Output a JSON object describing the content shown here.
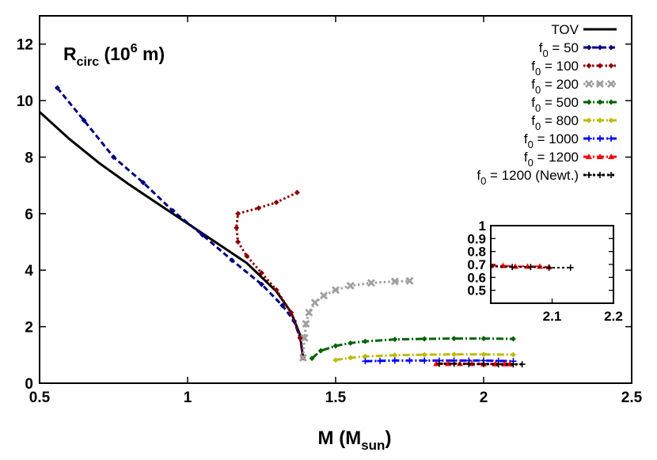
{
  "chart_data": {
    "type": "line",
    "title": "",
    "plot_label": {
      "main": "R",
      "sub": "circ",
      "rest": " (10",
      "sup": "6",
      "tail": " m)"
    },
    "xlabel": {
      "main": "M (M",
      "sub": "sun",
      "tail": ")"
    },
    "ylabel": "",
    "xlim": [
      0.5,
      2.5
    ],
    "ylim": [
      0,
      13
    ],
    "xticks": [
      "0.5",
      "1",
      "1.5",
      "2",
      "2.5"
    ],
    "yticks": [
      "0",
      "2",
      "4",
      "6",
      "8",
      "10",
      "12"
    ],
    "xtick_values": [
      0.5,
      1,
      1.5,
      2,
      2.5
    ],
    "ytick_values": [
      0,
      2,
      4,
      6,
      8,
      10,
      12
    ],
    "grid": false,
    "legend_position": "top-right",
    "series": [
      {
        "name": "TOV",
        "label": {
          "main": "TOV"
        },
        "color": "#000000",
        "dash": "solid",
        "marker": "none",
        "x": [
          0.5,
          0.6,
          0.7,
          0.8,
          0.9,
          1.0,
          1.1,
          1.2,
          1.3,
          1.35,
          1.38,
          1.39
        ],
        "y": [
          9.6,
          8.65,
          7.8,
          7.05,
          6.35,
          5.65,
          4.95,
          4.25,
          3.25,
          2.5,
          1.7,
          0.9
        ]
      },
      {
        "name": "f0 = 50",
        "label": {
          "main": "f",
          "sub": "0",
          "tail": " = 50"
        },
        "color": "#000080",
        "dash": "dash",
        "marker": "diamond",
        "x": [
          0.56,
          0.65,
          0.75,
          0.85,
          0.95,
          1.05,
          1.15,
          1.25,
          1.32,
          1.36,
          1.38,
          1.39
        ],
        "y": [
          10.45,
          9.3,
          8.0,
          7.1,
          6.1,
          5.25,
          4.35,
          3.5,
          2.75,
          2.2,
          1.6,
          0.95
        ]
      },
      {
        "name": "f0 = 100",
        "label": {
          "main": "f",
          "sub": "0",
          "tail": " = 100"
        },
        "color": "#8B0000",
        "dash": "dot",
        "marker": "diamond",
        "x": [
          1.37,
          1.3,
          1.24,
          1.17,
          1.165,
          1.17,
          1.2,
          1.25,
          1.3,
          1.35,
          1.38,
          1.39
        ],
        "y": [
          6.75,
          6.4,
          6.2,
          6.0,
          5.5,
          5.0,
          4.5,
          3.9,
          3.3,
          2.5,
          1.6,
          0.9
        ]
      },
      {
        "name": "f0 = 200",
        "label": {
          "main": "f",
          "sub": "0",
          "tail": " = 200"
        },
        "color": "#A0A0A0",
        "dash": "dot",
        "marker": "cross",
        "x": [
          1.39,
          1.395,
          1.4,
          1.41,
          1.43,
          1.46,
          1.5,
          1.55,
          1.62,
          1.7,
          1.75
        ],
        "y": [
          0.9,
          1.6,
          2.1,
          2.5,
          2.85,
          3.1,
          3.3,
          3.45,
          3.55,
          3.6,
          3.62
        ]
      },
      {
        "name": "f0 = 500",
        "label": {
          "main": "f",
          "sub": "0",
          "tail": " = 500"
        },
        "color": "#006400",
        "dash": "dashdot",
        "marker": "diamond",
        "x": [
          1.42,
          1.45,
          1.5,
          1.55,
          1.6,
          1.7,
          1.8,
          1.9,
          2.0,
          2.1
        ],
        "y": [
          0.88,
          1.15,
          1.32,
          1.42,
          1.48,
          1.55,
          1.57,
          1.58,
          1.58,
          1.57
        ]
      },
      {
        "name": "f0 = 800",
        "label": {
          "main": "f",
          "sub": "0",
          "tail": " = 800"
        },
        "color": "#BBBB00",
        "dash": "dashdot",
        "marker": "diamond",
        "x": [
          1.5,
          1.55,
          1.6,
          1.7,
          1.8,
          1.9,
          2.0,
          2.1
        ],
        "y": [
          0.82,
          0.9,
          0.95,
          0.99,
          1.01,
          1.02,
          1.02,
          1.01
        ]
      },
      {
        "name": "f0 = 1000",
        "label": {
          "main": "f",
          "sub": "0",
          "tail": " = 1000"
        },
        "color": "#0000FF",
        "dash": "dashdot",
        "marker": "plus",
        "x": [
          1.6,
          1.65,
          1.7,
          1.75,
          1.8,
          1.85,
          1.9,
          1.95,
          2.0,
          2.05,
          2.1
        ],
        "y": [
          0.78,
          0.79,
          0.8,
          0.8,
          0.8,
          0.8,
          0.8,
          0.8,
          0.8,
          0.79,
          0.78
        ]
      },
      {
        "name": "f0 = 1200",
        "label": {
          "main": "f",
          "sub": "0",
          "tail": " = 1200"
        },
        "color": "#FF0000",
        "dash": "dashdot",
        "marker": "triangle",
        "x": [
          1.84,
          1.88,
          1.92,
          1.96,
          2.0,
          2.04,
          2.07,
          2.09
        ],
        "y": [
          0.69,
          0.69,
          0.69,
          0.69,
          0.68,
          0.68,
          0.68,
          0.68
        ]
      },
      {
        "name": "f0 = 1200 (Newt.)",
        "label": {
          "main": "f",
          "sub": "0",
          "tail": " = 1200 (Newt.)"
        },
        "color": "#000000",
        "dash": "finedash",
        "marker": "plus",
        "x": [
          1.85,
          1.9,
          1.95,
          2.0,
          2.05,
          2.1,
          2.13
        ],
        "y": [
          0.69,
          0.69,
          0.68,
          0.68,
          0.67,
          0.67,
          0.67
        ]
      }
    ],
    "inset": {
      "xlim": [
        2.0,
        2.2
      ],
      "ylim": [
        0.4,
        1.0
      ],
      "xticks": [
        "2.1",
        "2.2"
      ],
      "xtick_values": [
        2.1,
        2.2
      ],
      "yticks": [
        "0.5",
        "0.6",
        "0.7",
        "0.8",
        "0.9",
        "1"
      ],
      "ytick_values": [
        0.5,
        0.6,
        0.7,
        0.8,
        0.9,
        1.0
      ],
      "series": [
        {
          "name": "f0 = 1200",
          "color": "#FF0000",
          "dash": "dashdot",
          "marker": "triangle",
          "x": [
            2.0,
            2.02,
            2.04,
            2.06,
            2.08,
            2.095
          ],
          "y": [
            0.69,
            0.69,
            0.685,
            0.685,
            0.685,
            0.68
          ]
        },
        {
          "name": "f0 = 1200 (Newt.)",
          "color": "#000000",
          "dash": "finedash",
          "marker": "plus",
          "x": [
            2.0,
            2.035,
            2.065,
            2.095,
            2.13
          ],
          "y": [
            0.685,
            0.68,
            0.68,
            0.675,
            0.675
          ]
        }
      ]
    }
  }
}
